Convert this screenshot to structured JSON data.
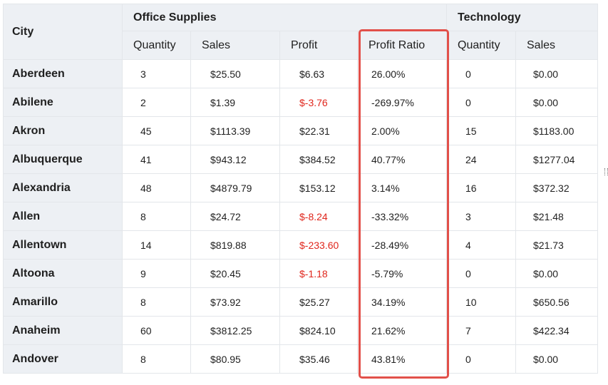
{
  "headers": {
    "city": "City",
    "group1": "Office Supplies",
    "group2": "Technology",
    "os_cols": [
      "Quantity",
      "Sales",
      "Profit",
      "Profit Ratio"
    ],
    "tech_cols": [
      "Quantity",
      "Sales"
    ]
  },
  "colors": {
    "negative_profit": "#e0261c",
    "highlight_border": "#e2504a",
    "header_bg": "#edf0f4"
  },
  "rows": [
    {
      "city": "Aberdeen",
      "os_qty": "3",
      "os_sales": "$25.50",
      "os_profit": "$6.63",
      "os_profit_neg": false,
      "os_ratio": "26.00%",
      "tech_qty": "0",
      "tech_sales": "$0.00"
    },
    {
      "city": "Abilene",
      "os_qty": "2",
      "os_sales": "$1.39",
      "os_profit": "$-3.76",
      "os_profit_neg": true,
      "os_ratio": "-269.97%",
      "tech_qty": "0",
      "tech_sales": "$0.00"
    },
    {
      "city": "Akron",
      "os_qty": "45",
      "os_sales": "$1113.39",
      "os_profit": "$22.31",
      "os_profit_neg": false,
      "os_ratio": "2.00%",
      "tech_qty": "15",
      "tech_sales": "$1183.00"
    },
    {
      "city": "Albuquerque",
      "os_qty": "41",
      "os_sales": "$943.12",
      "os_profit": "$384.52",
      "os_profit_neg": false,
      "os_ratio": "40.77%",
      "tech_qty": "24",
      "tech_sales": "$1277.04"
    },
    {
      "city": "Alexandria",
      "os_qty": "48",
      "os_sales": "$4879.79",
      "os_profit": "$153.12",
      "os_profit_neg": false,
      "os_ratio": "3.14%",
      "tech_qty": "16",
      "tech_sales": "$372.32"
    },
    {
      "city": "Allen",
      "os_qty": "8",
      "os_sales": "$24.72",
      "os_profit": "$-8.24",
      "os_profit_neg": true,
      "os_ratio": "-33.32%",
      "tech_qty": "3",
      "tech_sales": "$21.48"
    },
    {
      "city": "Allentown",
      "os_qty": "14",
      "os_sales": "$819.88",
      "os_profit": "$-233.60",
      "os_profit_neg": true,
      "os_ratio": "-28.49%",
      "tech_qty": "4",
      "tech_sales": "$21.73"
    },
    {
      "city": "Altoona",
      "os_qty": "9",
      "os_sales": "$20.45",
      "os_profit": "$-1.18",
      "os_profit_neg": true,
      "os_ratio": "-5.79%",
      "tech_qty": "0",
      "tech_sales": "$0.00"
    },
    {
      "city": "Amarillo",
      "os_qty": "8",
      "os_sales": "$73.92",
      "os_profit": "$25.27",
      "os_profit_neg": false,
      "os_ratio": "34.19%",
      "tech_qty": "10",
      "tech_sales": "$650.56"
    },
    {
      "city": "Anaheim",
      "os_qty": "60",
      "os_sales": "$3812.25",
      "os_profit": "$824.10",
      "os_profit_neg": false,
      "os_ratio": "21.62%",
      "tech_qty": "7",
      "tech_sales": "$422.34"
    },
    {
      "city": "Andover",
      "os_qty": "8",
      "os_sales": "$80.95",
      "os_profit": "$35.46",
      "os_profit_neg": false,
      "os_ratio": "43.81%",
      "tech_qty": "0",
      "tech_sales": "$0.00"
    }
  ]
}
